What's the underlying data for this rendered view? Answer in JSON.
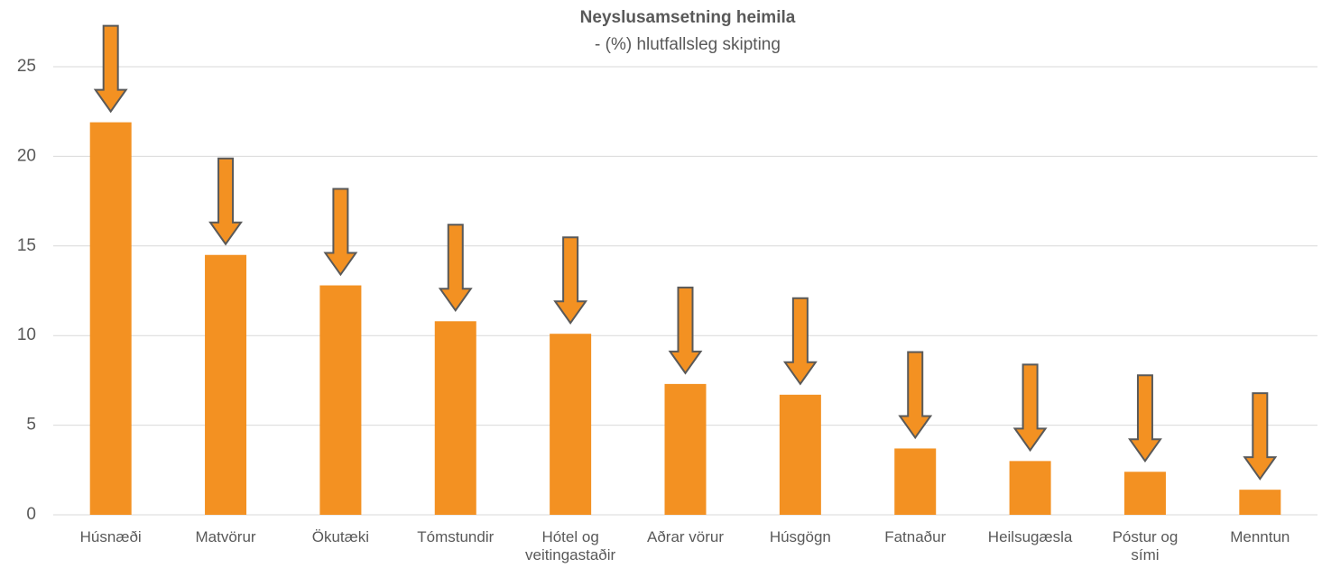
{
  "chart_data": {
    "type": "bar",
    "title": "Neyslusamsetning heimila",
    "subtitle": "- (%) hlutfallsleg skipting",
    "categories": [
      "Húsnæði",
      "Matvörur",
      "Ökutæki",
      "Tómstundir",
      "Hótel og veitingastaðir",
      "Aðrar vörur",
      "Húsgögn",
      "Fatnaður",
      "Heilsugæsla",
      "Póstur og sími",
      "Menntun"
    ],
    "values": [
      21.9,
      14.5,
      12.8,
      10.8,
      10.1,
      7.3,
      6.7,
      3.7,
      3.0,
      2.4,
      1.4
    ],
    "color": "#f39122",
    "ylim": [
      0,
      25
    ],
    "yticks": [
      0,
      5,
      10,
      15,
      20,
      25
    ],
    "grid": true
  }
}
